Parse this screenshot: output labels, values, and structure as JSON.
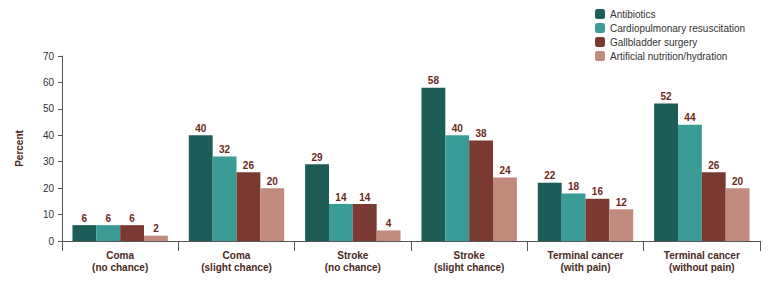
{
  "chart_data": {
    "type": "bar",
    "y_label": "Percent",
    "categories": [
      "Coma (no chance)",
      "Coma (slight chance)",
      "Stroke (no chance)",
      "Stroke (slight chance)",
      "Terminal cancer (with pain)",
      "Terminal cancer (without pain)"
    ],
    "series": [
      {
        "name": "Antibiotics",
        "color": "#1d5c57",
        "values": [
          6,
          40,
          29,
          58,
          22,
          52
        ]
      },
      {
        "name": "Cardiopulmonary resuscitation",
        "color": "#3a9b97",
        "values": [
          6,
          32,
          14,
          40,
          18,
          44
        ]
      },
      {
        "name": "Gallbladder surgery",
        "color": "#7b3a31",
        "values": [
          6,
          26,
          14,
          38,
          16,
          26
        ]
      },
      {
        "name": "Artificial nutrition/hydration",
        "color": "#c08a7d",
        "values": [
          2,
          20,
          4,
          24,
          12,
          20
        ]
      }
    ],
    "ylim": [
      0,
      70
    ],
    "yticks": [
      0,
      10,
      20,
      30,
      40,
      50,
      60,
      70
    ],
    "grid": false,
    "legend": "upper right",
    "data_labels": true
  }
}
